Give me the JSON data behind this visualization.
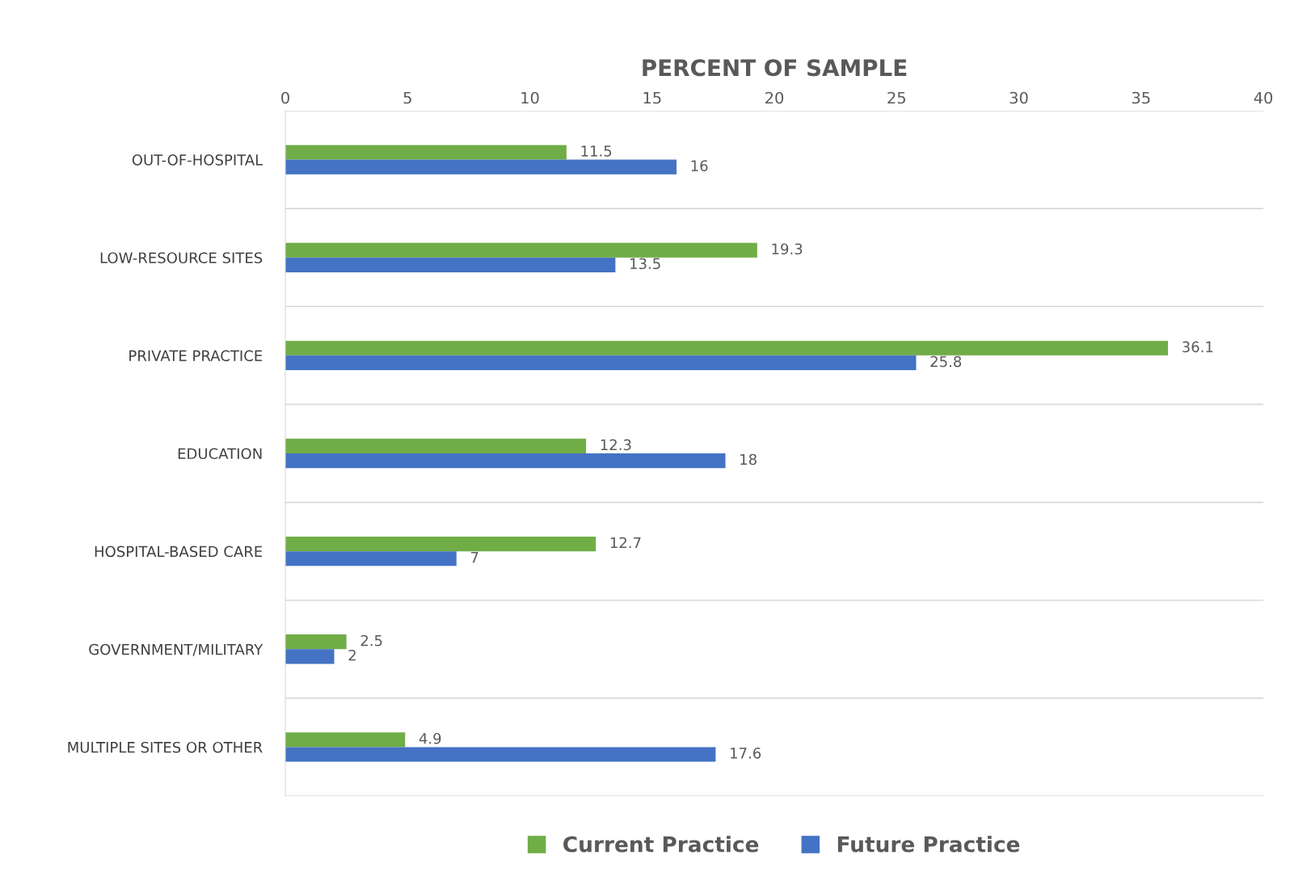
{
  "chart_data": {
    "type": "bar",
    "orientation": "horizontal",
    "xlabel": "PERCENT OF SAMPLE",
    "categories": [
      "OUT-OF-HOSPITAL",
      "LOW-RESOURCE SITES",
      "PRIVATE PRACTICE",
      "EDUCATION",
      "HOSPITAL-BASED CARE",
      "GOVERNMENT/MILITARY",
      "MULTIPLE SITES OR OTHER"
    ],
    "series": [
      {
        "name": "Current Practice",
        "color": "#70ad47",
        "values": [
          11.5,
          19.3,
          36.1,
          12.3,
          12.7,
          2.5,
          4.9
        ]
      },
      {
        "name": "Future Practice",
        "color": "#4472c4",
        "values": [
          16,
          13.5,
          25.8,
          18,
          7,
          2,
          17.6
        ]
      }
    ],
    "xlim": [
      0,
      40
    ],
    "xticks": [
      0,
      5,
      10,
      15,
      20,
      25,
      30,
      35,
      40
    ],
    "grid": "y",
    "legend": "bottom",
    "data_labels": true
  }
}
